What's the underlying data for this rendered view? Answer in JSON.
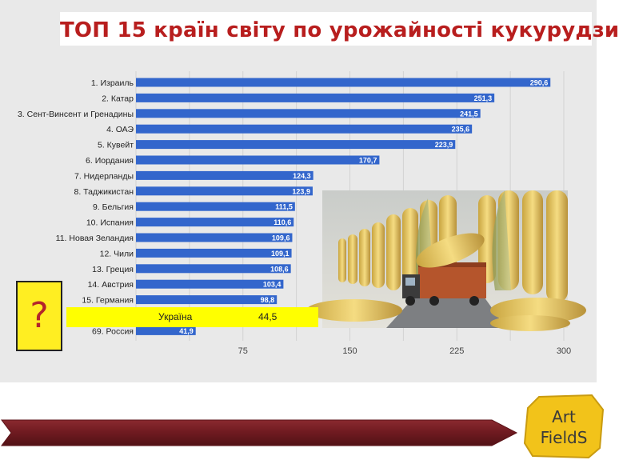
{
  "title": "ТОП 15 країн світу по урожайності кукурудзи",
  "chart_data": {
    "type": "bar",
    "orientation": "horizontal",
    "categories": [
      "1. Израиль",
      "2. Катар",
      "3. Сент-Винсент и Гренадины",
      "4. ОАЭ",
      "5. Кувейт",
      "6. Иордания",
      "7. Нидерланды",
      "8. Таджикистан",
      "9. Бельгия",
      "10. Испания",
      "11. Новая Зеландия",
      "12. Чили",
      "13. Греция",
      "14. Австрия",
      "15. Германия",
      "69. Россия"
    ],
    "values": [
      290.6,
      251.3,
      241.5,
      235.6,
      223.9,
      170.7,
      124.3,
      123.9,
      111.5,
      110.6,
      109.6,
      109.1,
      108.6,
      103.4,
      98.8,
      41.9
    ],
    "value_labels": [
      "290,6",
      "251,3",
      "241,5",
      "235,6",
      "223,9",
      "170,7",
      "124,3",
      "123,9",
      "111,5",
      "110,6",
      "109,6",
      "109,1",
      "108,6",
      "103,4",
      "98,8",
      "41,9"
    ],
    "xticks": [
      75,
      150,
      225,
      300
    ],
    "xlim": [
      0,
      300
    ],
    "bar_color": "#3366cc",
    "grid": true
  },
  "highlight": {
    "label": "Україна",
    "value_label": "44,5",
    "color": "#ffff00"
  },
  "question": {
    "symbol": "?",
    "color": "#ffee22"
  },
  "photo": {
    "icon": "corn-field-truck-photo"
  },
  "footer": {
    "banner_color": "#7a1f24"
  },
  "logo": {
    "line1": "Art",
    "line2": "FieldS",
    "color": "#f2c31a"
  }
}
